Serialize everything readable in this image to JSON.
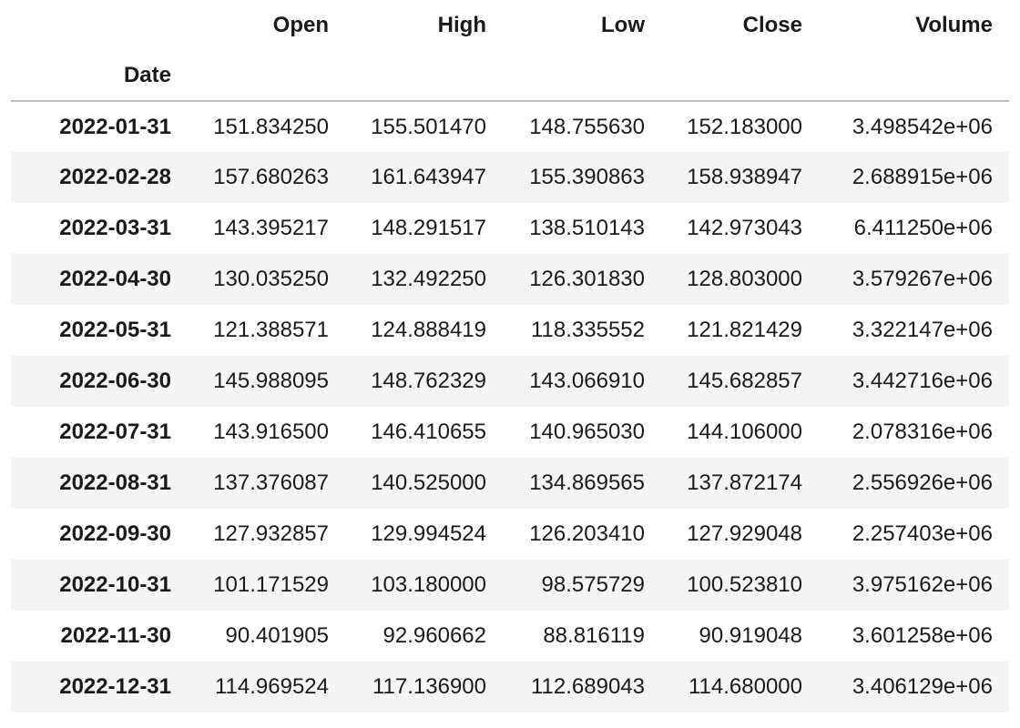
{
  "table": {
    "columns": [
      "Open",
      "High",
      "Low",
      "Close",
      "Volume"
    ],
    "index_name": "Date",
    "rows": [
      {
        "date": "2022-01-31",
        "values": [
          "151.834250",
          "155.501470",
          "148.755630",
          "152.183000",
          "3.498542e+06"
        ]
      },
      {
        "date": "2022-02-28",
        "values": [
          "157.680263",
          "161.643947",
          "155.390863",
          "158.938947",
          "2.688915e+06"
        ]
      },
      {
        "date": "2022-03-31",
        "values": [
          "143.395217",
          "148.291517",
          "138.510143",
          "142.973043",
          "6.411250e+06"
        ]
      },
      {
        "date": "2022-04-30",
        "values": [
          "130.035250",
          "132.492250",
          "126.301830",
          "128.803000",
          "3.579267e+06"
        ]
      },
      {
        "date": "2022-05-31",
        "values": [
          "121.388571",
          "124.888419",
          "118.335552",
          "121.821429",
          "3.322147e+06"
        ]
      },
      {
        "date": "2022-06-30",
        "values": [
          "145.988095",
          "148.762329",
          "143.066910",
          "145.682857",
          "3.442716e+06"
        ]
      },
      {
        "date": "2022-07-31",
        "values": [
          "143.916500",
          "146.410655",
          "140.965030",
          "144.106000",
          "2.078316e+06"
        ]
      },
      {
        "date": "2022-08-31",
        "values": [
          "137.376087",
          "140.525000",
          "134.869565",
          "137.872174",
          "2.556926e+06"
        ]
      },
      {
        "date": "2022-09-30",
        "values": [
          "127.932857",
          "129.994524",
          "126.203410",
          "127.929048",
          "2.257403e+06"
        ]
      },
      {
        "date": "2022-10-31",
        "values": [
          "101.171529",
          "103.180000",
          "98.575729",
          "100.523810",
          "3.975162e+06"
        ]
      },
      {
        "date": "2022-11-30",
        "values": [
          "90.401905",
          "92.960662",
          "88.816119",
          "90.919048",
          "3.601258e+06"
        ]
      },
      {
        "date": "2022-12-31",
        "values": [
          "114.969524",
          "117.136900",
          "112.689043",
          "114.680000",
          "3.406129e+06"
        ]
      }
    ]
  }
}
